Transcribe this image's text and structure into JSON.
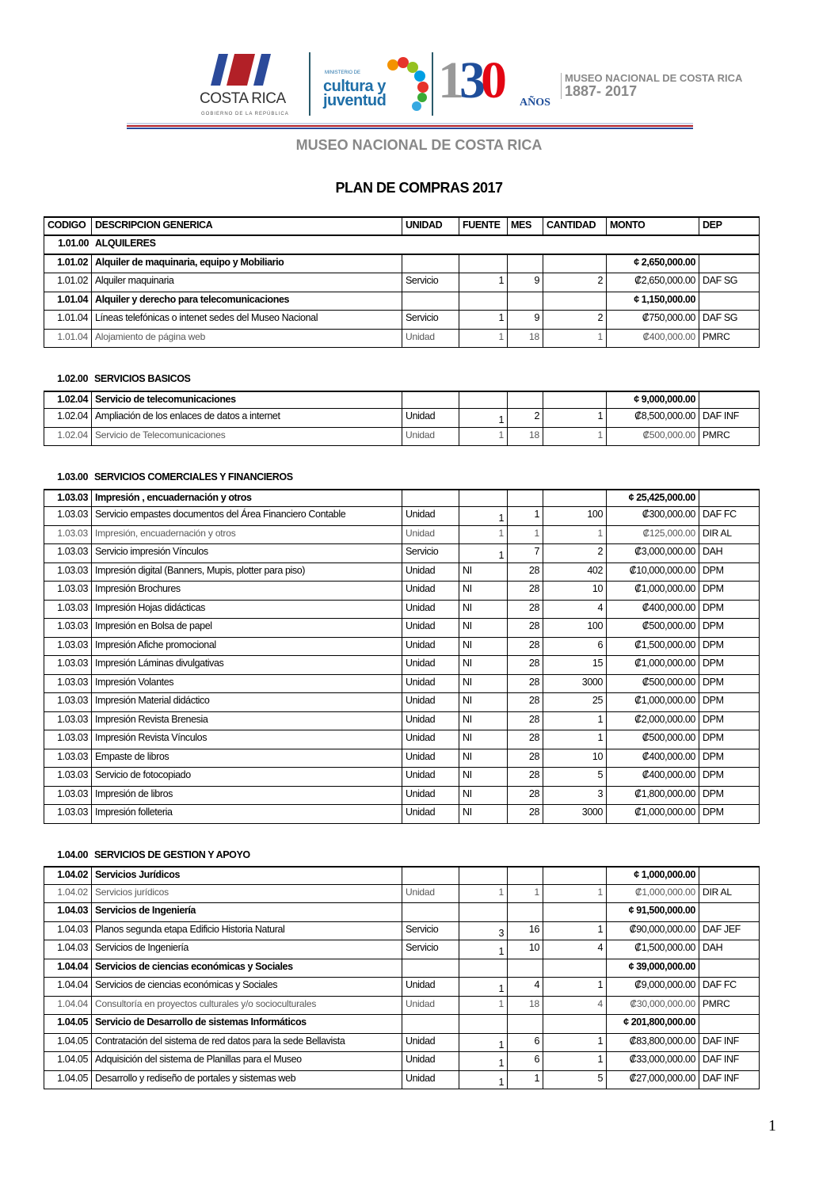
{
  "header": {
    "logo_costa_rica": "COSTA RICA",
    "logo_costa_rica_sub": "GOBIERNO DE LA REPÚBLICA",
    "logo_ministerio": "MINISTERIO DE",
    "logo_cultura": "cultura y juventud",
    "logo_130": "130",
    "logo_anos": "AÑOS",
    "logo_museo": "MUSEO NACIONAL DE COSTA RICA",
    "logo_years": "1887- 2017",
    "institution": "MUSEO NACIONAL DE COSTA RICA",
    "title": "PLAN DE COMPRAS 2017"
  },
  "columns": [
    "CODIGO",
    "DESCRIPCION GENERICA",
    "UNIDAD",
    "FUENTE",
    "MES",
    "CANTIDAD",
    "MONTO",
    "DEP"
  ],
  "sections": [
    {
      "code": "1.01.00",
      "name": "ALQUILERES",
      "rows": [
        {
          "t": "group",
          "c": [
            "1.01.02",
            "Alquiler de maquinaria, equipo y Mobiliario",
            "",
            "",
            "",
            "",
            "¢ 2,650,000.00",
            ""
          ]
        },
        {
          "t": "item",
          "c": [
            "1.01.02",
            "Alquiler maquinaria",
            "Servicio",
            "1",
            "9",
            "2",
            "₡2,650,000.00",
            "DAF SG"
          ]
        },
        {
          "t": "group",
          "c": [
            "1.01.04",
            "Alquiler y derecho para telecomunicaciones",
            "",
            "",
            "",
            "",
            "¢ 1,150,000.00",
            ""
          ]
        },
        {
          "t": "item",
          "c": [
            "1.01.04",
            "Líneas telefónicas o intenet sedes del Museo Nacional",
            "Servicio",
            "1",
            "9",
            "2",
            "₡750,000.00",
            "DAF SG"
          ]
        },
        {
          "t": "light",
          "c": [
            "1.01.04",
            "Alojamiento de página web",
            "Unidad",
            "1",
            "18",
            "1",
            "₡400,000.00",
            "PMRC"
          ]
        }
      ]
    },
    {
      "code": "1.02.00",
      "name": "SERVICIOS BASICOS",
      "rows": [
        {
          "t": "group",
          "c": [
            "1.02.04",
            "Servicio de telecomunicaciones",
            "",
            "",
            "",
            "",
            "¢ 9,000,000.00",
            ""
          ]
        },
        {
          "t": "item",
          "low": true,
          "c": [
            "1.02.04",
            "Ampliación de los enlaces de datos a internet",
            "Unidad",
            "1",
            "2",
            "1",
            "₡8,500,000.00",
            "DAF INF"
          ]
        },
        {
          "t": "light",
          "c": [
            "1.02.04",
            "Servicio de Telecomunicaciones",
            "Unidad",
            "1",
            "18",
            "1",
            "₡500,000.00",
            "PMRC"
          ]
        }
      ]
    },
    {
      "code": "1.03.00",
      "name": "SERVICIOS COMERCIALES Y FINANCIEROS",
      "rows": [
        {
          "t": "group",
          "c": [
            "1.03.03",
            "Impresión , encuadernación y otros",
            "",
            "",
            "",
            "",
            "¢ 25,425,000.00",
            ""
          ]
        },
        {
          "t": "item",
          "low": true,
          "c": [
            "1.03.03",
            "Servicio empastes documentos del Área Financiero Contable",
            "Unidad",
            "1",
            "1",
            "100",
            "₡300,000.00",
            "DAF FC"
          ]
        },
        {
          "t": "light",
          "c": [
            "1.03.03",
            "Impresión, encuadernación y otros",
            "Unidad",
            "1",
            "1",
            "1",
            "₡125,000.00",
            "DIR AL"
          ]
        },
        {
          "t": "item",
          "low": true,
          "c": [
            "1.03.03",
            "Servicio impresión Vínculos",
            "Servicio",
            "1",
            "7",
            "2",
            "₡3,000,000.00",
            "DAH"
          ]
        },
        {
          "t": "item",
          "c": [
            "1.03.03",
            "Impresión digital (Banners, Mupis, plotter para piso)",
            "Unidad",
            "NI",
            "28",
            "402",
            "₡10,000,000.00",
            "DPM"
          ]
        },
        {
          "t": "item",
          "c": [
            "1.03.03",
            "Impresión Brochures",
            "Unidad",
            "NI",
            "28",
            "10",
            "₡1,000,000.00",
            "DPM"
          ]
        },
        {
          "t": "item",
          "c": [
            "1.03.03",
            "Impresión Hojas didácticas",
            "Unidad",
            "NI",
            "28",
            "4",
            "₡400,000.00",
            "DPM"
          ]
        },
        {
          "t": "item",
          "c": [
            "1.03.03",
            "Impresión en Bolsa de papel",
            "Unidad",
            "NI",
            "28",
            "100",
            "₡500,000.00",
            "DPM"
          ]
        },
        {
          "t": "item",
          "c": [
            "1.03.03",
            "Impresión Afiche promocional",
            "Unidad",
            "NI",
            "28",
            "6",
            "₡1,500,000.00",
            "DPM"
          ]
        },
        {
          "t": "item",
          "c": [
            "1.03.03",
            "Impresión Láminas divulgativas",
            "Unidad",
            "NI",
            "28",
            "15",
            "₡1,000,000.00",
            "DPM"
          ]
        },
        {
          "t": "item",
          "c": [
            "1.03.03",
            "Impresión Volantes",
            "Unidad",
            "NI",
            "28",
            "3000",
            "₡500,000.00",
            "DPM"
          ]
        },
        {
          "t": "item",
          "c": [
            "1.03.03",
            "Impresión Material didáctico",
            "Unidad",
            "NI",
            "28",
            "25",
            "₡1,000,000.00",
            "DPM"
          ]
        },
        {
          "t": "item",
          "c": [
            "1.03.03",
            "Impresión Revista Brenesia",
            "Unidad",
            "NI",
            "28",
            "1",
            "₡2,000,000.00",
            "DPM"
          ]
        },
        {
          "t": "item",
          "c": [
            "1.03.03",
            "Impresión Revista Vínculos",
            "Unidad",
            "NI",
            "28",
            "1",
            "₡500,000.00",
            "DPM"
          ]
        },
        {
          "t": "item",
          "c": [
            "1.03.03",
            "Empaste de libros",
            "Unidad",
            "NI",
            "28",
            "10",
            "₡400,000.00",
            "DPM"
          ]
        },
        {
          "t": "item",
          "c": [
            "1.03.03",
            "Servicio de fotocopiado",
            "Unidad",
            "NI",
            "28",
            "5",
            "₡400,000.00",
            "DPM"
          ]
        },
        {
          "t": "item",
          "c": [
            "1.03.03",
            "Impresión de libros",
            "Unidad",
            "NI",
            "28",
            "3",
            "₡1,800,000.00",
            "DPM"
          ]
        },
        {
          "t": "item",
          "c": [
            "1.03.03",
            "Impresión folleteria",
            "Unidad",
            "NI",
            "28",
            "3000",
            "₡1,000,000.00",
            "DPM"
          ]
        }
      ]
    },
    {
      "code": "1.04.00",
      "name": "SERVICIOS DE GESTION Y APOYO",
      "rows": [
        {
          "t": "group",
          "c": [
            "1.04.02",
            "Servicios Jurídicos",
            "",
            "",
            "",
            "",
            "¢ 1,000,000.00",
            ""
          ]
        },
        {
          "t": "light",
          "c": [
            "1.04.02",
            "Servicios jurídicos",
            "Unidad",
            "1",
            "1",
            "1",
            "₡1,000,000.00",
            "DIR AL"
          ]
        },
        {
          "t": "group",
          "c": [
            "1.04.03",
            "Servicios de Ingeniería",
            "",
            "",
            "",
            "",
            "¢ 91,500,000.00",
            ""
          ]
        },
        {
          "t": "item",
          "low": true,
          "c": [
            "1.04.03",
            "Planos segunda etapa Edificio Historia Natural",
            "Servicio",
            "3",
            "16",
            "1",
            "₡90,000,000.00",
            "DAF JEF"
          ]
        },
        {
          "t": "item",
          "low": true,
          "c": [
            "1.04.03",
            "Servicios de Ingeniería",
            "Servicio",
            "1",
            "10",
            "4",
            "₡1,500,000.00",
            "DAH"
          ]
        },
        {
          "t": "group",
          "c": [
            "1.04.04",
            "Servicios de ciencias económicas y Sociales",
            "",
            "",
            "",
            "",
            "¢ 39,000,000.00",
            ""
          ]
        },
        {
          "t": "item",
          "low": true,
          "c": [
            "1.04.04",
            "Servicios de ciencias económicas y Sociales",
            "Unidad",
            "1",
            "4",
            "1",
            "₡9,000,000.00",
            "DAF FC"
          ]
        },
        {
          "t": "light",
          "c": [
            "1.04.04",
            "Consultoría en proyectos culturales y/o socioculturales",
            "Unidad",
            "1",
            "18",
            "4",
            "₡30,000,000.00",
            "PMRC"
          ]
        },
        {
          "t": "group",
          "c": [
            "1.04.05",
            "Servicio de Desarrollo de sistemas Informáticos",
            "",
            "",
            "",
            "",
            "¢ 201,800,000.00",
            ""
          ]
        },
        {
          "t": "item",
          "low": true,
          "c": [
            "1.04.05",
            "Contratación del sistema de red datos para la sede Bellavista",
            "Unidad",
            "1",
            "6",
            "1",
            "₡83,800,000.00",
            "DAF INF"
          ]
        },
        {
          "t": "item",
          "low": true,
          "c": [
            "1.04.05",
            "Adquisición del sistema de Planillas para el Museo",
            "Unidad",
            "1",
            "6",
            "1",
            "₡33,000,000.00",
            "DAF INF"
          ]
        },
        {
          "t": "item",
          "low": true,
          "c": [
            "1.04.05",
            "Desarrollo y rediseño de  portales y sistemas web",
            "Unidad",
            "1",
            "1",
            "5",
            "₡27,000,000.00",
            "DAF INF"
          ]
        }
      ]
    }
  ],
  "page_number": "1"
}
